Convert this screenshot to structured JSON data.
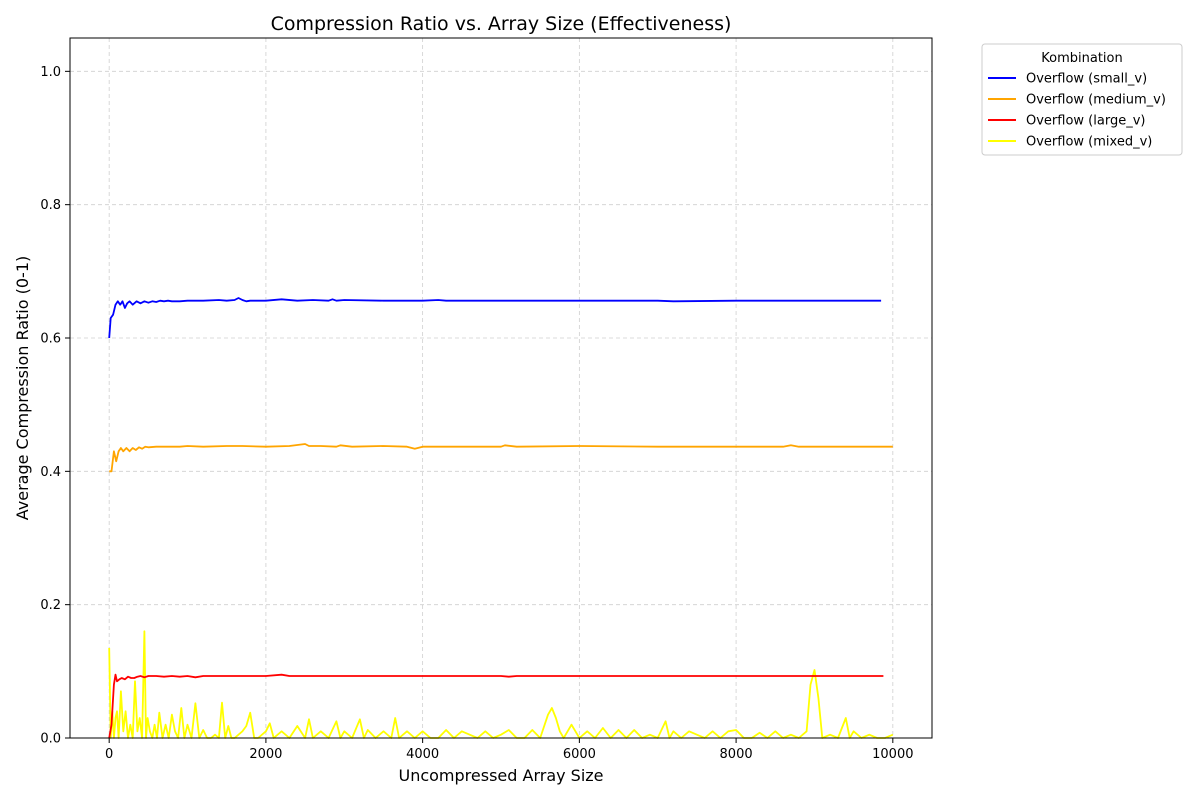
{
  "chart_data": {
    "type": "line",
    "title": "Compression Ratio vs. Array Size (Effectiveness)",
    "xlabel": "Uncompressed Array Size",
    "ylabel": "Average Compression Ratio (0-1)",
    "xlim": [
      -500,
      10500
    ],
    "ylim": [
      0,
      1.05
    ],
    "xticks": [
      0,
      2000,
      4000,
      6000,
      8000,
      10000
    ],
    "yticks": [
      0.0,
      0.2,
      0.4,
      0.6,
      0.8,
      1.0
    ],
    "xtick_labels": [
      "0",
      "2000",
      "4000",
      "6000",
      "8000",
      "10000"
    ],
    "ytick_labels": [
      "0.0",
      "0.2",
      "0.4",
      "0.6",
      "0.8",
      "1.0"
    ],
    "grid": true,
    "legend": {
      "title": "Kombination",
      "placement": "outside-top-right"
    },
    "series": [
      {
        "name": "Overflow (small_v)",
        "color": "#0000ff",
        "x": [
          0,
          20,
          50,
          80,
          110,
          140,
          170,
          200,
          230,
          260,
          300,
          350,
          400,
          450,
          500,
          550,
          600,
          650,
          700,
          750,
          800,
          900,
          1000,
          1200,
          1400,
          1500,
          1600,
          1650,
          1700,
          1750,
          1800,
          2000,
          2200,
          2400,
          2600,
          2800,
          2850,
          2900,
          3000,
          3500,
          4000,
          4200,
          4300,
          5000,
          6000,
          7000,
          7200,
          8000,
          9000,
          9850
        ],
        "y": [
          0.6,
          0.63,
          0.635,
          0.65,
          0.655,
          0.65,
          0.655,
          0.645,
          0.652,
          0.655,
          0.65,
          0.655,
          0.652,
          0.655,
          0.653,
          0.655,
          0.654,
          0.656,
          0.655,
          0.656,
          0.655,
          0.655,
          0.656,
          0.656,
          0.657,
          0.656,
          0.657,
          0.66,
          0.657,
          0.655,
          0.656,
          0.656,
          0.658,
          0.656,
          0.657,
          0.656,
          0.658,
          0.656,
          0.657,
          0.656,
          0.656,
          0.657,
          0.656,
          0.656,
          0.656,
          0.656,
          0.655,
          0.656,
          0.656,
          0.656
        ]
      },
      {
        "name": "Overflow (medium_v)",
        "color": "#ffa500",
        "x": [
          0,
          30,
          60,
          90,
          120,
          150,
          180,
          220,
          260,
          300,
          340,
          380,
          420,
          460,
          500,
          600,
          700,
          800,
          900,
          1000,
          1200,
          1500,
          1700,
          2000,
          2300,
          2500,
          2550,
          2700,
          2900,
          2950,
          3100,
          3500,
          3800,
          3900,
          4000,
          4500,
          5000,
          5050,
          5200,
          6000,
          7000,
          8000,
          8600,
          8700,
          8800,
          9000,
          10000
        ],
        "y": [
          0.4,
          0.4,
          0.43,
          0.415,
          0.43,
          0.435,
          0.43,
          0.435,
          0.43,
          0.435,
          0.432,
          0.436,
          0.434,
          0.437,
          0.436,
          0.437,
          0.437,
          0.437,
          0.437,
          0.438,
          0.437,
          0.438,
          0.438,
          0.437,
          0.438,
          0.441,
          0.438,
          0.438,
          0.437,
          0.439,
          0.437,
          0.438,
          0.437,
          0.434,
          0.437,
          0.437,
          0.437,
          0.439,
          0.437,
          0.438,
          0.437,
          0.437,
          0.437,
          0.439,
          0.437,
          0.437,
          0.437
        ]
      },
      {
        "name": "Overflow (large_v)",
        "color": "#ff0000",
        "x": [
          0,
          30,
          60,
          80,
          100,
          130,
          160,
          200,
          240,
          280,
          320,
          360,
          400,
          450,
          500,
          600,
          700,
          800,
          900,
          1000,
          1100,
          1200,
          1500,
          2000,
          2200,
          2300,
          3000,
          4000,
          4500,
          5000,
          5100,
          5200,
          6000,
          7000,
          8000,
          9000,
          9880
        ],
        "y": [
          0.0,
          0.02,
          0.08,
          0.095,
          0.085,
          0.088,
          0.09,
          0.088,
          0.092,
          0.09,
          0.09,
          0.092,
          0.093,
          0.091,
          0.093,
          0.093,
          0.092,
          0.093,
          0.092,
          0.093,
          0.091,
          0.093,
          0.093,
          0.093,
          0.095,
          0.093,
          0.093,
          0.093,
          0.093,
          0.093,
          0.092,
          0.093,
          0.093,
          0.093,
          0.093,
          0.093,
          0.093
        ]
      },
      {
        "name": "Overflow (mixed_v)",
        "color": "#ffff00",
        "x": [
          0,
          20,
          40,
          60,
          80,
          100,
          120,
          150,
          180,
          210,
          240,
          270,
          300,
          330,
          360,
          390,
          420,
          450,
          470,
          490,
          520,
          550,
          580,
          610,
          640,
          680,
          720,
          760,
          800,
          840,
          880,
          920,
          960,
          1000,
          1050,
          1100,
          1150,
          1200,
          1250,
          1300,
          1350,
          1400,
          1440,
          1480,
          1520,
          1560,
          1600,
          1700,
          1750,
          1800,
          1850,
          1900,
          2000,
          2050,
          2100,
          2200,
          2300,
          2400,
          2500,
          2550,
          2600,
          2700,
          2800,
          2900,
          2950,
          3000,
          3100,
          3200,
          3250,
          3300,
          3400,
          3500,
          3600,
          3650,
          3700,
          3800,
          3900,
          4000,
          4100,
          4200,
          4300,
          4400,
          4500,
          4600,
          4700,
          4800,
          4900,
          5000,
          5100,
          5200,
          5300,
          5400,
          5500,
          5600,
          5650,
          5700,
          5750,
          5800,
          5900,
          6000,
          6100,
          6200,
          6300,
          6400,
          6500,
          6600,
          6700,
          6800,
          6900,
          7000,
          7100,
          7150,
          7200,
          7300,
          7400,
          7500,
          7600,
          7700,
          7800,
          7900,
          8000,
          8100,
          8200,
          8300,
          8400,
          8500,
          8600,
          8700,
          8800,
          8900,
          8950,
          9000,
          9050,
          9100,
          9200,
          9300,
          9400,
          9450,
          9500,
          9600,
          9700,
          9800,
          9900,
          10000
        ],
        "y": [
          0.135,
          0.0,
          0.04,
          0.0,
          0.03,
          0.04,
          0.0,
          0.07,
          0.01,
          0.04,
          0.0,
          0.02,
          0.0,
          0.085,
          0.01,
          0.03,
          0.0,
          0.16,
          0.0,
          0.03,
          0.01,
          0.0,
          0.02,
          0.0,
          0.038,
          0.0,
          0.02,
          0.0,
          0.035,
          0.01,
          0.0,
          0.045,
          0.0,
          0.02,
          0.0,
          0.052,
          0.0,
          0.012,
          0.0,
          0.0,
          0.005,
          0.0,
          0.053,
          0.0,
          0.018,
          0.0,
          0.0,
          0.01,
          0.018,
          0.038,
          0.0,
          0.0,
          0.01,
          0.022,
          0.0,
          0.01,
          0.0,
          0.018,
          0.0,
          0.028,
          0.0,
          0.01,
          0.0,
          0.025,
          0.0,
          0.01,
          0.0,
          0.028,
          0.0,
          0.012,
          0.0,
          0.01,
          0.0,
          0.03,
          0.0,
          0.01,
          0.0,
          0.01,
          0.0,
          0.0,
          0.012,
          0.0,
          0.01,
          0.005,
          0.0,
          0.01,
          0.0,
          0.005,
          0.012,
          0.0,
          0.0,
          0.012,
          0.0,
          0.035,
          0.045,
          0.03,
          0.01,
          0.0,
          0.02,
          0.0,
          0.01,
          0.0,
          0.015,
          0.0,
          0.012,
          0.0,
          0.012,
          0.0,
          0.005,
          0.0,
          0.025,
          0.0,
          0.01,
          0.0,
          0.01,
          0.005,
          0.0,
          0.01,
          0.0,
          0.01,
          0.012,
          0.0,
          0.0,
          0.008,
          0.0,
          0.01,
          0.0,
          0.005,
          0.0,
          0.01,
          0.08,
          0.102,
          0.06,
          0.0,
          0.005,
          0.0,
          0.03,
          0.0,
          0.01,
          0.0,
          0.005,
          0.0,
          0.0,
          0.005
        ]
      }
    ]
  }
}
